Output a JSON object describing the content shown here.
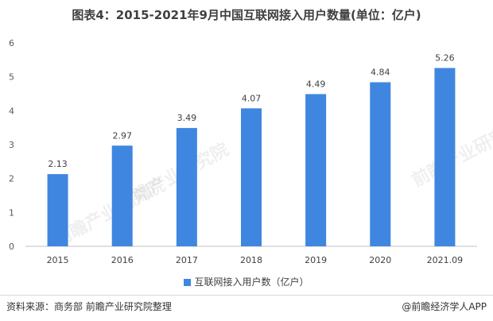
{
  "title": "图表4：2015-2021年9月中国互联网接入用户数量(单位：亿户)",
  "legend_label": "互联网接入用户数（亿户）",
  "source": "资料来源：商务部 前瞻产业研究院整理",
  "brand": "@前瞻经济学人APP",
  "watermark_text": "前瞻产业研究院",
  "colors": {
    "bar": "#3f86e0",
    "axis": "#bfbfbf"
  },
  "chart_data": {
    "type": "bar",
    "title": "图表4：2015-2021年9月中国互联网接入用户数量(单位：亿户)",
    "categories": [
      "2015",
      "2016",
      "2017",
      "2018",
      "2019",
      "2020",
      "2021.09"
    ],
    "series": [
      {
        "name": "互联网接入用户数（亿户）",
        "values": [
          2.13,
          2.97,
          3.49,
          4.07,
          4.49,
          4.84,
          5.26
        ]
      }
    ],
    "ylim": [
      0,
      6
    ],
    "yticks": [
      0,
      1,
      2,
      3,
      4,
      5,
      6
    ],
    "grid": false,
    "legend_position": "bottom"
  }
}
